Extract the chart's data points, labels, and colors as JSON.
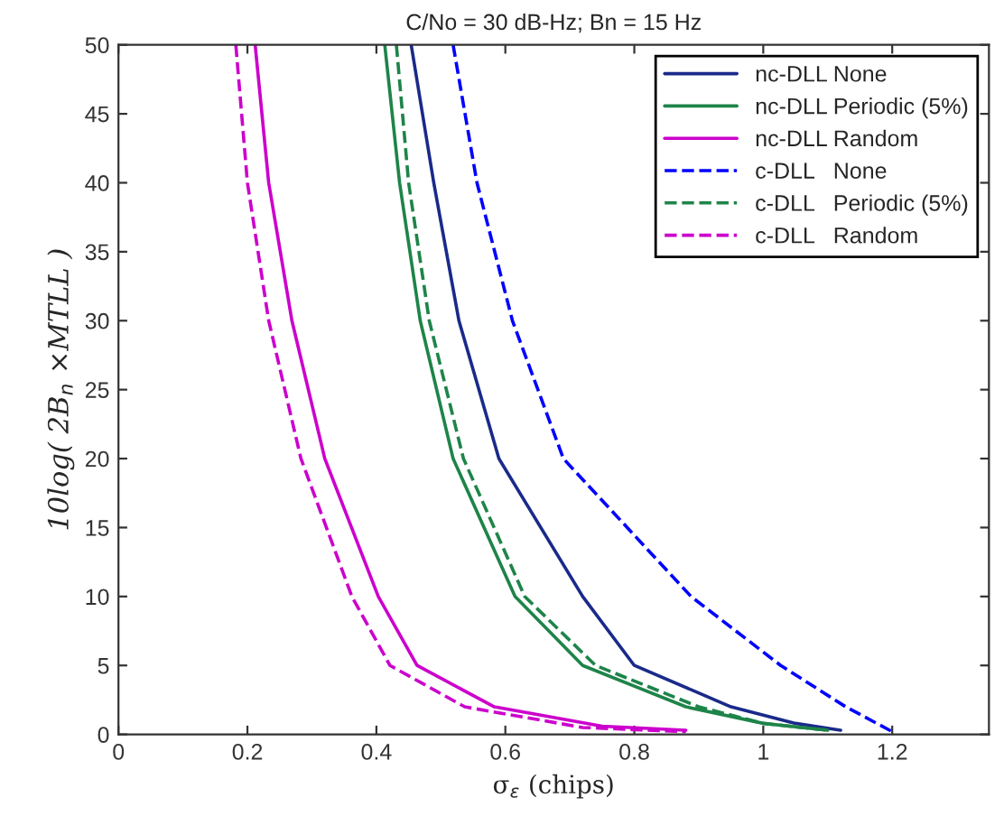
{
  "chart_data": {
    "type": "line",
    "title": "C/No = 30 dB-Hz; Bn = 15 Hz",
    "xlabel": "σ$_{ε}$ (chips)",
    "ylabel": "10log( 2B$_{n}$ ×MTLL )",
    "xlim": [
      0,
      1.35
    ],
    "ylim": [
      0,
      50
    ],
    "xticks": [
      0,
      0.2,
      0.4,
      0.6,
      0.8,
      1,
      1.2
    ],
    "yticks": [
      0,
      5,
      10,
      15,
      20,
      25,
      30,
      35,
      40,
      45,
      50
    ],
    "grid": false,
    "legend": "top right",
    "marker": "none",
    "series": [
      {
        "name": "nc-DLL None",
        "color": "#1a2a8a",
        "line_style": "solid",
        "x": [
          0.454,
          0.489,
          0.528,
          0.59,
          0.72,
          0.8,
          0.95,
          1.05,
          1.12
        ],
        "values": [
          50,
          40,
          30,
          20,
          10,
          5,
          2,
          0.8,
          0.3
        ]
      },
      {
        "name": "nc-DLL Periodic (5%)",
        "color": "#1e8449",
        "line_style": "solid",
        "x": [
          0.413,
          0.436,
          0.468,
          0.519,
          0.615,
          0.72,
          0.88,
          1.0,
          1.1
        ],
        "values": [
          50,
          40,
          30,
          20,
          10,
          5,
          2,
          0.8,
          0.3
        ]
      },
      {
        "name": "nc-DLL Random",
        "color": "#cc00cc",
        "line_style": "solid",
        "x": [
          0.212,
          0.233,
          0.269,
          0.32,
          0.403,
          0.463,
          0.583,
          0.75,
          0.88
        ],
        "values": [
          50,
          40,
          30,
          20,
          10,
          5,
          2,
          0.6,
          0.3
        ]
      },
      {
        "name": "c-DLL   None",
        "color": "#0000ff",
        "line_style": "dashed",
        "x": [
          0.519,
          0.556,
          0.611,
          0.69,
          0.888,
          1.027,
          1.128,
          1.2
        ],
        "values": [
          50,
          40,
          30,
          20,
          10,
          5,
          2,
          0.2
        ]
      },
      {
        "name": "c-DLL   Periodic (5%)",
        "color": "#1e8449",
        "line_style": "dashed",
        "x": [
          0.431,
          0.45,
          0.482,
          0.535,
          0.63,
          0.74,
          0.9,
          1.0,
          1.1
        ],
        "values": [
          50,
          40,
          30,
          20,
          10,
          5,
          2,
          0.8,
          0.3
        ]
      },
      {
        "name": "c-DLL   Random",
        "color": "#cc00cc",
        "line_style": "dashed",
        "x": [
          0.182,
          0.2,
          0.233,
          0.283,
          0.362,
          0.421,
          0.537,
          0.72,
          0.88
        ],
        "values": [
          50,
          40,
          30,
          20,
          10,
          5,
          2,
          0.5,
          0.2
        ]
      }
    ]
  }
}
